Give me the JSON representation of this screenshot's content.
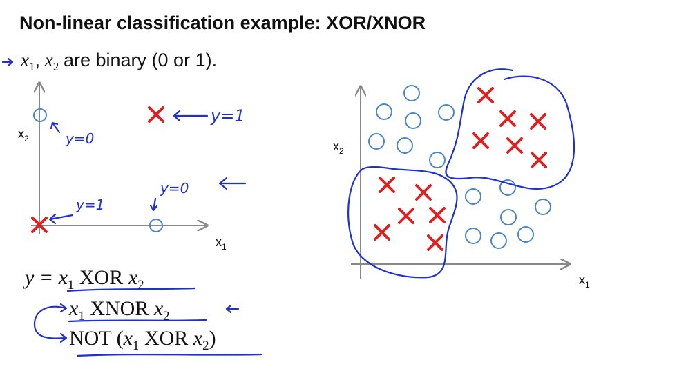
{
  "title": "Non-linear classification example: XOR/XNOR",
  "bullet": {
    "var1": "x",
    "sub1": "1",
    "sep": ",",
    "var2": "x",
    "sub2": "2",
    "text": "are binary (0 or 1)."
  },
  "left_plot": {
    "x_label": {
      "main": "x",
      "sub": "1"
    },
    "y_label": {
      "main": "x",
      "sub": "2"
    },
    "annotations": [
      "y=0",
      "y=1",
      "y=1",
      "y=0"
    ]
  },
  "right_plot": {
    "x_label": {
      "main": "x",
      "sub": "1"
    },
    "y_label": {
      "main": "x",
      "sub": "2"
    }
  },
  "equations": [
    {
      "lhs": "y =",
      "var1": "x",
      "sub1": "1",
      "op": "XOR",
      "var2": "x",
      "sub2": "2"
    },
    {
      "var1": "x",
      "sub1": "1",
      "op": "XNOR",
      "var2": "x",
      "sub2": "2"
    },
    {
      "prefix": "NOT (",
      "var1": "x",
      "sub1": "1",
      "op": "XOR",
      "var2": "x",
      "sub2": "2",
      "suffix": ")"
    }
  ]
}
